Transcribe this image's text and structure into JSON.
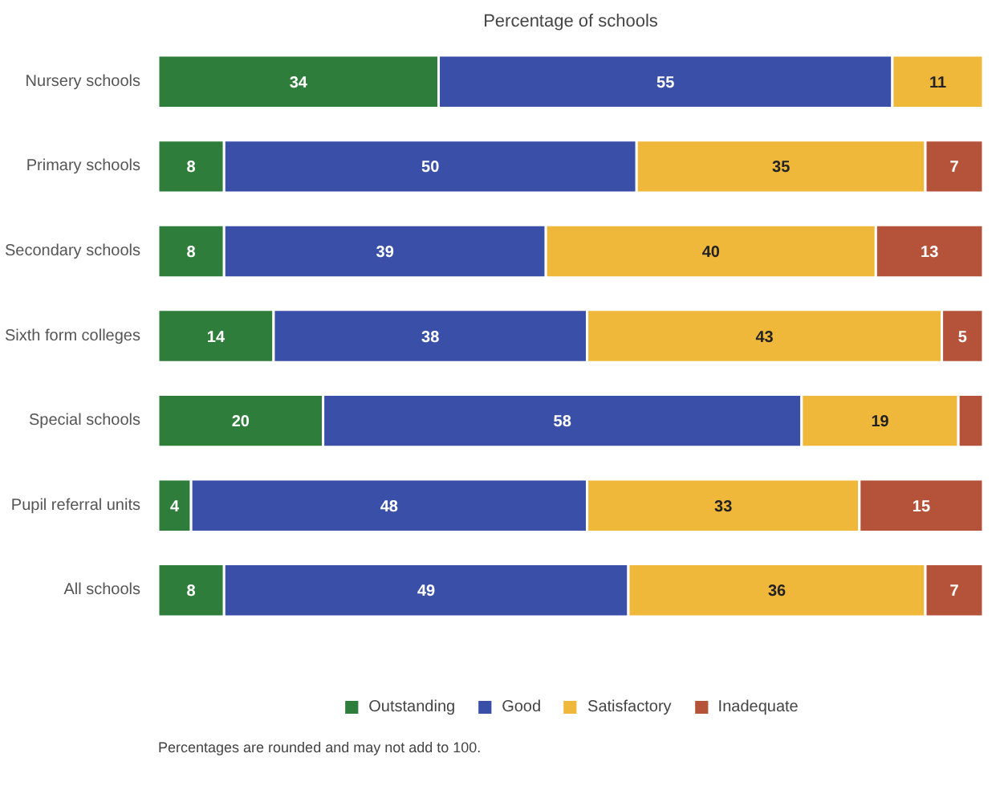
{
  "chart_data": {
    "type": "bar",
    "orientation": "horizontal",
    "stacked": true,
    "title": "Percentage of schools",
    "categories": [
      "Nursery schools",
      "Primary schools",
      "Secondary schools",
      "Sixth form colleges",
      "Special schools",
      "Pupil referral units",
      "All schools"
    ],
    "series": [
      {
        "name": "Outstanding",
        "color": "#2e7d3a",
        "values": [
          34,
          8,
          8,
          14,
          20,
          4,
          8
        ],
        "value_labels": [
          "34",
          "8",
          "8",
          "14",
          "20",
          "4",
          "8"
        ]
      },
      {
        "name": "Good",
        "color": "#3a4fa8",
        "values": [
          55,
          50,
          39,
          38,
          58,
          48,
          49
        ],
        "value_labels": [
          "55",
          "50",
          "39",
          "38",
          "58",
          "48",
          "49"
        ]
      },
      {
        "name": "Satisfactory",
        "color": "#f0b83a",
        "values": [
          11,
          35,
          40,
          43,
          19,
          33,
          36
        ],
        "value_labels": [
          "11",
          "35",
          "40",
          "43",
          "19",
          "33",
          "36"
        ]
      },
      {
        "name": "Inadequate",
        "color": "#b5533a",
        "values": [
          null,
          7,
          13,
          5,
          3,
          15,
          7
        ],
        "value_labels": [
          null,
          "7",
          "13",
          "5",
          null,
          "15",
          "7"
        ]
      }
    ],
    "legend": "bottom",
    "grid": false,
    "tick_labels": "y",
    "annotations": [
      "Percentages are rounded and may not add to 100."
    ]
  }
}
